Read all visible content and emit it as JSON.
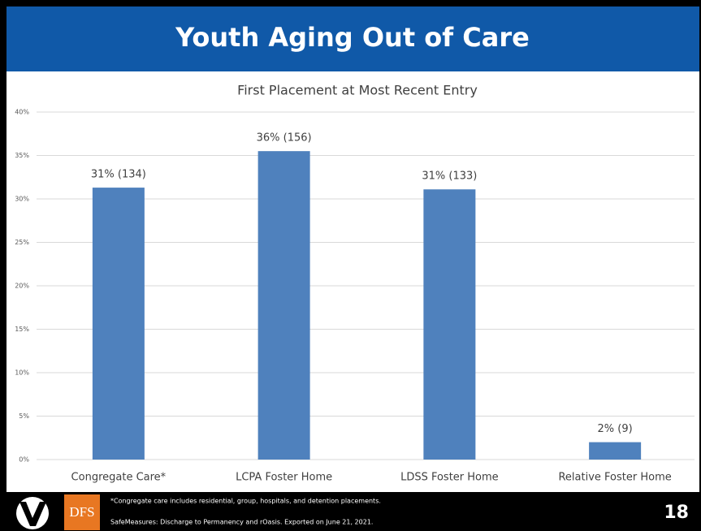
{
  "slide": {
    "title": "Youth Aging Out of Care",
    "logo_text": "DFS",
    "footnote": "*Congregate care includes residential, group, hospitals, and detention placements.",
    "source": "SafeMeasures: Discharge to Permanency and rOasis. Exported on June 21, 2021.",
    "page_number": "18"
  },
  "chart_data": {
    "type": "bar",
    "title": "First Placement at Most Recent Entry",
    "categories": [
      "Congregate Care*",
      "LCPA Foster Home",
      "LDSS Foster Home",
      "Relative Foster Home"
    ],
    "values": [
      31.3,
      35.5,
      31.1,
      2.0
    ],
    "value_labels": [
      "31% (134)",
      "36% (156)",
      "31% (133)",
      "2% (9)"
    ],
    "color": "#4f81bd",
    "ylim": [
      0,
      40
    ],
    "yticks": [
      {
        "value": 0,
        "label": "0%"
      },
      {
        "value": 5,
        "label": "5%"
      },
      {
        "value": 10,
        "label": "10%"
      },
      {
        "value": 15,
        "label": "15%"
      },
      {
        "value": 20,
        "label": "20%"
      },
      {
        "value": 25,
        "label": "25%"
      },
      {
        "value": 30,
        "label": "30%"
      },
      {
        "value": 35,
        "label": "35%"
      },
      {
        "value": 40,
        "label": "40%"
      }
    ],
    "grid": true
  }
}
